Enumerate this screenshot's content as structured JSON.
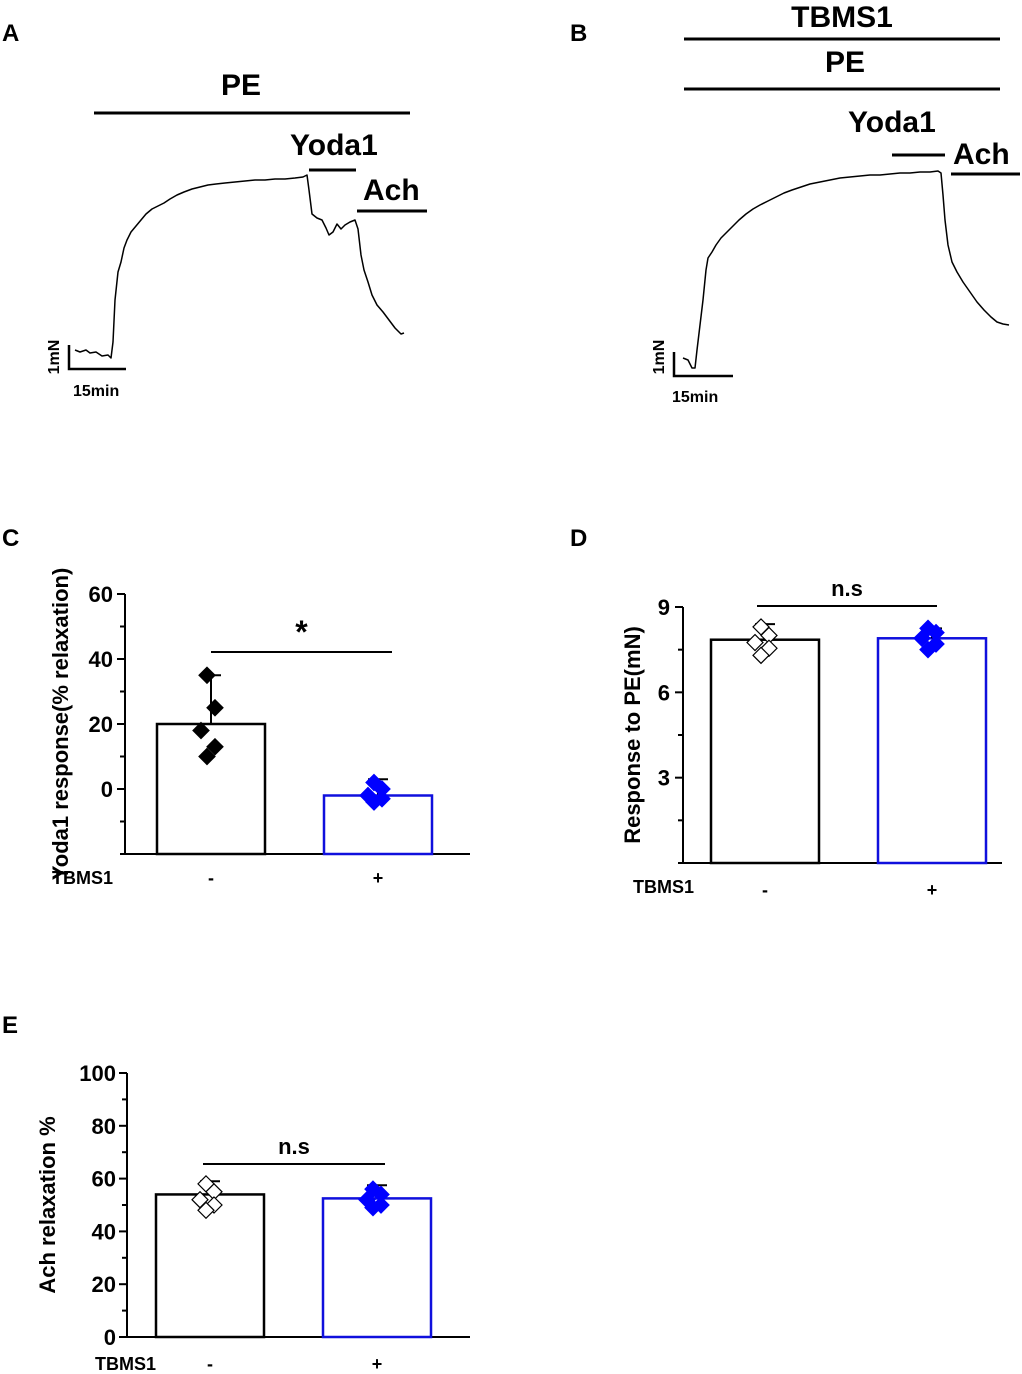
{
  "panels": {
    "A": "A",
    "B": "B",
    "C": "C",
    "D": "D",
    "E": "E"
  },
  "trace_a": {
    "labels": {
      "pe": "PE",
      "yoda": "Yoda1",
      "ach": "Ach"
    },
    "scale": {
      "y": "1mN",
      "x": "15min"
    }
  },
  "trace_b": {
    "labels": {
      "tbms": "TBMS1",
      "pe": "PE",
      "yoda": "Yoda1",
      "ach": "Ach"
    },
    "scale": {
      "y": "1mN",
      "x": "15min"
    }
  },
  "chart_data": [
    {
      "id": "C",
      "type": "bar",
      "ylabel": "Yoda1 response(% relaxation)",
      "ylim": [
        -20,
        60
      ],
      "yticks": [
        0,
        20,
        40,
        60
      ],
      "row_label": "TBMS1",
      "categories": [
        "-",
        "+"
      ],
      "values": [
        20,
        -2
      ],
      "errors": [
        15,
        5
      ],
      "bar_colors": [
        "#000000",
        "#1010dd"
      ],
      "points": [
        [
          35,
          25,
          18,
          13,
          10
        ],
        [
          2,
          0,
          -2,
          -3,
          -4
        ]
      ],
      "point_fill": [
        "#000000",
        "#0000ff"
      ],
      "significance": "*"
    },
    {
      "id": "D",
      "type": "bar",
      "ylabel": "Response to PE(mN)",
      "ylim": [
        0,
        9
      ],
      "yticks": [
        3,
        6,
        9
      ],
      "row_label": "TBMS1",
      "categories": [
        "-",
        "+"
      ],
      "values": [
        7.85,
        7.9
      ],
      "errors": [
        0.55,
        0.35
      ],
      "bar_colors": [
        "#000000",
        "#1010dd"
      ],
      "points": [
        [
          8.3,
          8.0,
          7.75,
          7.55,
          7.3
        ],
        [
          8.25,
          8.1,
          7.9,
          7.7,
          7.5
        ]
      ],
      "point_fill": [
        "#ffffff",
        "#0000ff"
      ],
      "significance": "n.s"
    },
    {
      "id": "E",
      "type": "bar",
      "ylabel": "Ach relaxation %",
      "ylim": [
        0,
        100
      ],
      "yticks": [
        0,
        20,
        40,
        60,
        80,
        100
      ],
      "row_label": "TBMS1",
      "categories": [
        "-",
        "+"
      ],
      "values": [
        54,
        52.5
      ],
      "errors": [
        5,
        5
      ],
      "bar_colors": [
        "#000000",
        "#1010dd"
      ],
      "points": [
        [
          58,
          55,
          52,
          50,
          48
        ],
        [
          56,
          54,
          52,
          50,
          49
        ]
      ],
      "point_fill": [
        "#ffffff",
        "#0000ff"
      ],
      "significance": "n.s"
    }
  ]
}
